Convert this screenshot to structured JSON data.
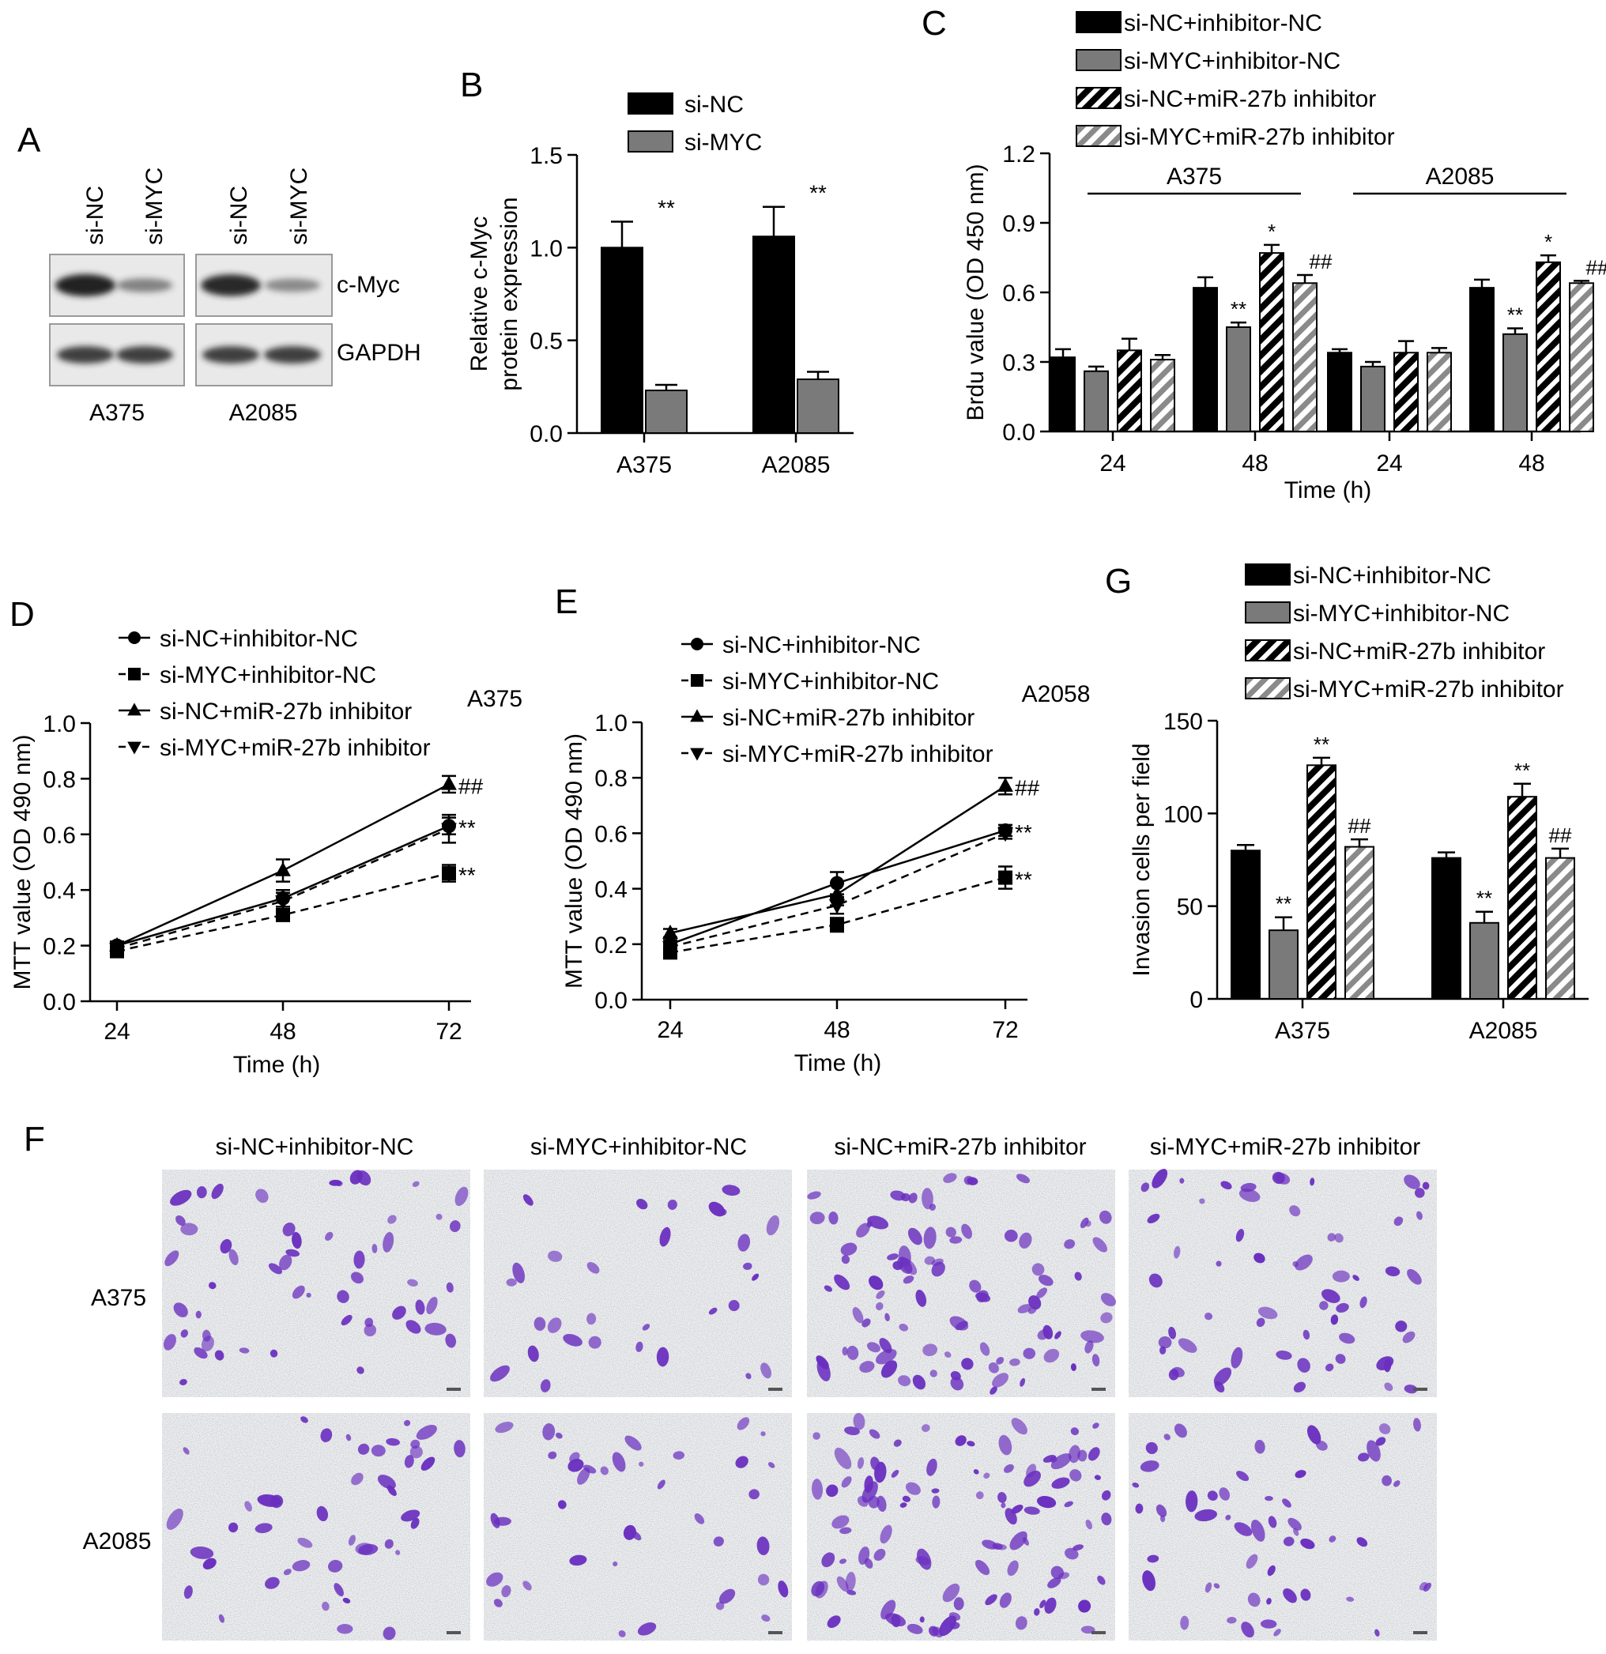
{
  "panel_letters": {
    "a": "A",
    "b": "B",
    "c": "C",
    "d": "D",
    "e": "E",
    "f": "F",
    "g": "G"
  },
  "colors": {
    "black": "#000000",
    "gray": "#7a7a7a",
    "stain": "#6a2fbf",
    "membrane": "#e9e9ea",
    "band": "#202020"
  },
  "panel_a": {
    "lane_labels": [
      "si-NC",
      "si-MYC",
      "si-NC",
      "si-MYC"
    ],
    "row_labels": [
      "c-Myc",
      "GAPDH"
    ],
    "cell_labels": [
      "A375",
      "A2085"
    ],
    "band_intensity": {
      "c_myc": [
        1.0,
        0.35,
        0.95,
        0.3
      ],
      "gapdh": [
        1.0,
        1.0,
        1.0,
        1.0
      ]
    }
  },
  "legend4": [
    "si-NC+inhibitor-NC",
    "si-MYC+inhibitor-NC",
    "si-NC+miR-27b inhibitor",
    "si-MYC+miR-27b inhibitor"
  ],
  "chart_data": [
    {
      "panel": "B",
      "type": "bar",
      "ylabel": "Relative c-Myc protein expression",
      "ylabel_lines": [
        "Relative c-Myc",
        "protein expression"
      ],
      "ylim": [
        0,
        1.5
      ],
      "yticks": [
        "0.0",
        "0.5",
        "1.0",
        "1.5"
      ],
      "categories": [
        "A375",
        "A2085"
      ],
      "series": [
        {
          "name": "si-NC",
          "values": [
            1.0,
            1.06
          ],
          "errors": [
            0.14,
            0.16
          ],
          "fill": "#000000"
        },
        {
          "name": "si-MYC",
          "values": [
            0.23,
            0.29
          ],
          "errors": [
            0.03,
            0.04
          ],
          "fill": "#7a7a7a"
        }
      ],
      "annotations": [
        {
          "text": "**",
          "category": 1,
          "series": 1
        },
        {
          "text": "**",
          "category": 2,
          "series": 1
        }
      ],
      "legend": "top"
    },
    {
      "panel": "C",
      "type": "bar",
      "ylabel": "Brdu value (OD 450 nm)",
      "xlabel": "Time (h)",
      "ylim": [
        0,
        1.2
      ],
      "yticks": [
        "0.0",
        "0.3",
        "0.6",
        "0.9",
        "1.2"
      ],
      "categories": [
        "24",
        "48",
        "24",
        "48"
      ],
      "groups": [
        {
          "label": "A375"
        },
        {
          "label": "A2085"
        }
      ],
      "series": [
        {
          "name": "si-NC+inhibitor-NC",
          "values": [
            0.32,
            0.62,
            0.34,
            0.62
          ],
          "errors": [
            0.035,
            0.045,
            0.015,
            0.035
          ]
        },
        {
          "name": "si-MYC+inhibitor-NC",
          "values": [
            0.26,
            0.45,
            0.28,
            0.42
          ],
          "errors": [
            0.02,
            0.02,
            0.02,
            0.025
          ]
        },
        {
          "name": "si-NC+miR-27b inhibitor",
          "values": [
            0.35,
            0.77,
            0.34,
            0.73
          ],
          "errors": [
            0.05,
            0.035,
            0.05,
            0.03
          ]
        },
        {
          "name": "si-MYC+miR-27b inhibitor",
          "values": [
            0.31,
            0.64,
            0.34,
            0.64
          ],
          "errors": [
            0.02,
            0.035,
            0.02,
            0.01
          ]
        }
      ],
      "annotations": [
        [
          "",
          "**",
          "*",
          "##"
        ],
        [
          "",
          "**",
          "*",
          "##"
        ]
      ],
      "legend": "top"
    },
    {
      "panel": "D",
      "type": "line",
      "ylabel": "MTT value (OD 490 nm)",
      "xlabel": "Time (h)",
      "title": "A375",
      "x": [
        "24",
        "48",
        "72"
      ],
      "ylim": [
        0,
        1.0
      ],
      "yticks": [
        "0.0",
        "0.2",
        "0.4",
        "0.6",
        "0.8",
        "1.0"
      ],
      "series": [
        {
          "name": "si-NC+inhibitor-NC",
          "marker": "circle",
          "dashed": false,
          "values": [
            0.2,
            0.37,
            0.63
          ],
          "errors": [
            0.015,
            0.03,
            0.03
          ]
        },
        {
          "name": "si-MYC+inhibitor-NC",
          "marker": "square",
          "dashed": true,
          "values": [
            0.18,
            0.31,
            0.46
          ],
          "errors": [
            0.015,
            0.02,
            0.03
          ]
        },
        {
          "name": "si-NC+miR-27b inhibitor",
          "marker": "triangle",
          "dashed": false,
          "values": [
            0.2,
            0.47,
            0.78
          ],
          "errors": [
            0.015,
            0.04,
            0.03
          ]
        },
        {
          "name": "si-MYC+miR-27b inhibitor",
          "marker": "triangle-down",
          "dashed": true,
          "values": [
            0.19,
            0.36,
            0.62
          ],
          "errors": [
            0.015,
            0.03,
            0.05
          ]
        }
      ],
      "annotations": [
        {
          "text": "**",
          "series": 2
        },
        {
          "text": "##",
          "series": 3
        },
        {
          "text": "**",
          "series": 1
        }
      ],
      "legend": "top-left"
    },
    {
      "panel": "E",
      "type": "line",
      "ylabel": "MTT value (OD 490 nm)",
      "xlabel": "Time (h)",
      "title": "A2058",
      "x": [
        "24",
        "48",
        "72"
      ],
      "ylim": [
        0,
        1.0
      ],
      "yticks": [
        "0.0",
        "0.2",
        "0.4",
        "0.6",
        "0.8",
        "1.0"
      ],
      "series": [
        {
          "name": "si-NC+inhibitor-NC",
          "marker": "circle",
          "dashed": false,
          "values": [
            0.2,
            0.42,
            0.61
          ],
          "errors": [
            0.015,
            0.04,
            0.02
          ]
        },
        {
          "name": "si-MYC+inhibitor-NC",
          "marker": "square",
          "dashed": true,
          "values": [
            0.17,
            0.27,
            0.44
          ],
          "errors": [
            0.015,
            0.025,
            0.04
          ]
        },
        {
          "name": "si-NC+miR-27b inhibitor",
          "marker": "triangle",
          "dashed": false,
          "values": [
            0.24,
            0.38,
            0.77
          ],
          "errors": [
            0.015,
            0.04,
            0.03
          ]
        },
        {
          "name": "si-MYC+miR-27b inhibitor",
          "marker": "triangle-down",
          "dashed": true,
          "values": [
            0.19,
            0.34,
            0.6
          ],
          "errors": [
            0.015,
            0.03,
            0.02
          ]
        }
      ],
      "annotations": [
        {
          "text": "**",
          "series": 2
        },
        {
          "text": "##",
          "series": 3
        },
        {
          "text": "**",
          "series": 1
        }
      ],
      "legend": "top-left"
    },
    {
      "panel": "G",
      "type": "bar",
      "ylabel": "Invasion cells per field",
      "ylim": [
        0,
        150
      ],
      "yticks": [
        "0",
        "50",
        "100",
        "150"
      ],
      "categories": [
        "A375",
        "A2085"
      ],
      "series": [
        {
          "name": "si-NC+inhibitor-NC",
          "values": [
            80,
            76
          ],
          "errors": [
            3,
            3
          ]
        },
        {
          "name": "si-MYC+inhibitor-NC",
          "values": [
            37,
            41
          ],
          "errors": [
            7,
            6
          ]
        },
        {
          "name": "si-NC+miR-27b inhibitor",
          "values": [
            126,
            109
          ],
          "errors": [
            4,
            7
          ]
        },
        {
          "name": "si-MYC+miR-27b inhibitor",
          "values": [
            82,
            76
          ],
          "errors": [
            4,
            5
          ]
        }
      ],
      "annotations": [
        [
          "",
          "**",
          "**",
          "##"
        ],
        [
          "",
          "**",
          "**",
          "##"
        ]
      ],
      "legend": "top"
    }
  ],
  "panel_f": {
    "column_labels": [
      "si-NC+inhibitor-NC",
      "si-MYC+inhibitor-NC",
      "si-NC+miR-27b inhibitor",
      "si-MYC+miR-27b inhibitor"
    ],
    "row_labels": [
      "A375",
      "A2085"
    ],
    "cell_density": [
      [
        55,
        30,
        95,
        60
      ],
      [
        45,
        40,
        105,
        55
      ]
    ]
  }
}
